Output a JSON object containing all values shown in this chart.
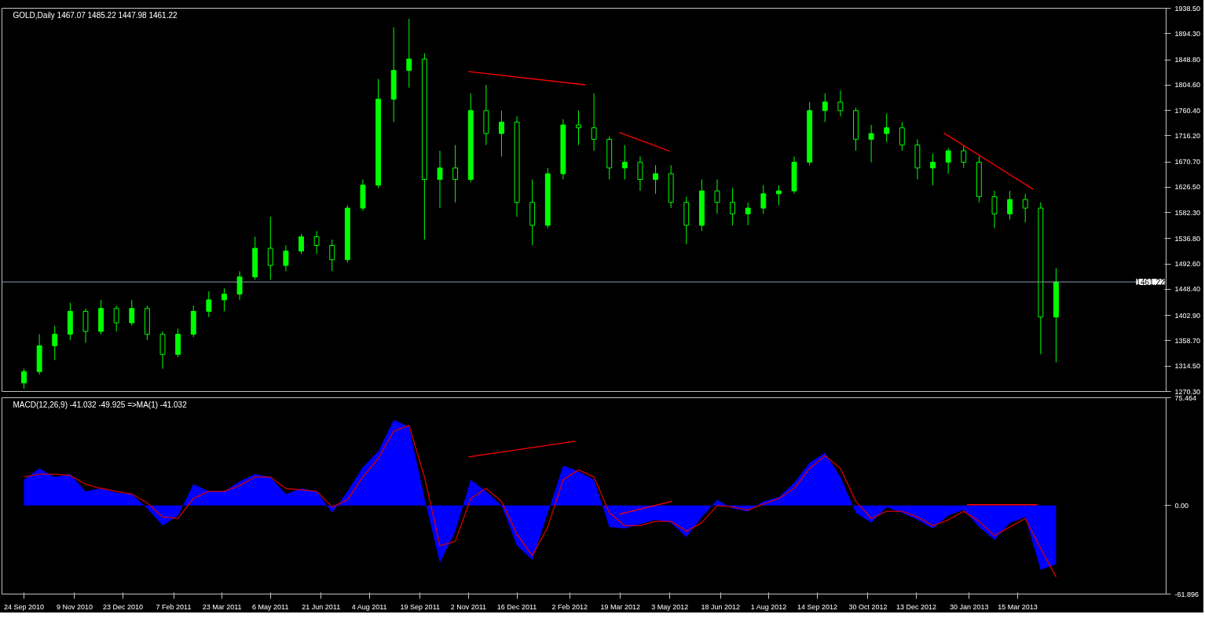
{
  "chart_data": [
    {
      "type": "candlestick",
      "title": "GOLD,Daily  1467.07 1485.22 1447.98 1461.22",
      "color": "#00ff00",
      "tick_labels": "y",
      "x": [
        "2010-09-24",
        "2010-10-08",
        "2010-10-22",
        "2010-11-05",
        "2010-11-19",
        "2010-12-03",
        "2010-12-17",
        "2010-12-31",
        "2011-01-14",
        "2011-01-28",
        "2011-02-11",
        "2011-02-25",
        "2011-03-11",
        "2011-03-25",
        "2011-04-08",
        "2011-04-22",
        "2011-05-06",
        "2011-05-20",
        "2011-06-03",
        "2011-06-17",
        "2011-07-01",
        "2011-07-15",
        "2011-07-29",
        "2011-08-12",
        "2011-08-26",
        "2011-09-09",
        "2011-09-23",
        "2011-10-07",
        "2011-10-21",
        "2011-11-04",
        "2011-11-18",
        "2011-12-02",
        "2011-12-16",
        "2011-12-30",
        "2012-01-13",
        "2012-01-27",
        "2012-02-10",
        "2012-02-24",
        "2012-03-09",
        "2012-03-23",
        "2012-04-06",
        "2012-04-20",
        "2012-05-04",
        "2012-05-18",
        "2012-06-01",
        "2012-06-15",
        "2012-06-29",
        "2012-07-13",
        "2012-07-27",
        "2012-08-10",
        "2012-08-24",
        "2012-09-07",
        "2012-09-21",
        "2012-10-05",
        "2012-10-19",
        "2012-11-02",
        "2012-11-16",
        "2012-11-30",
        "2012-12-14",
        "2012-12-28",
        "2013-01-11",
        "2013-01-25",
        "2013-02-08",
        "2013-02-22",
        "2013-03-08",
        "2013-03-22",
        "2013-04-05",
        "2013-04-19"
      ],
      "ohlc": [
        [
          1285,
          1310,
          1275,
          1305
        ],
        [
          1305,
          1370,
          1300,
          1350
        ],
        [
          1350,
          1385,
          1325,
          1370
        ],
        [
          1370,
          1425,
          1360,
          1410
        ],
        [
          1410,
          1415,
          1355,
          1375
        ],
        [
          1375,
          1430,
          1370,
          1415
        ],
        [
          1415,
          1420,
          1375,
          1390
        ],
        [
          1390,
          1430,
          1385,
          1415
        ],
        [
          1415,
          1420,
          1360,
          1370
        ],
        [
          1370,
          1375,
          1310,
          1335
        ],
        [
          1335,
          1380,
          1330,
          1370
        ],
        [
          1370,
          1420,
          1365,
          1410
        ],
        [
          1410,
          1445,
          1400,
          1430
        ],
        [
          1430,
          1450,
          1410,
          1440
        ],
        [
          1440,
          1480,
          1430,
          1470
        ],
        [
          1470,
          1540,
          1465,
          1520
        ],
        [
          1520,
          1575,
          1465,
          1490
        ],
        [
          1490,
          1525,
          1480,
          1515
        ],
        [
          1515,
          1545,
          1510,
          1540
        ],
        [
          1540,
          1550,
          1510,
          1525
        ],
        [
          1525,
          1535,
          1480,
          1500
        ],
        [
          1500,
          1595,
          1495,
          1590
        ],
        [
          1590,
          1640,
          1585,
          1630
        ],
        [
          1630,
          1815,
          1625,
          1780
        ],
        [
          1780,
          1905,
          1740,
          1830
        ],
        [
          1830,
          1920,
          1800,
          1850
        ],
        [
          1850,
          1860,
          1535,
          1640
        ],
        [
          1640,
          1690,
          1590,
          1660
        ],
        [
          1660,
          1700,
          1600,
          1640
        ],
        [
          1640,
          1790,
          1635,
          1760
        ],
        [
          1760,
          1805,
          1700,
          1720
        ],
        [
          1720,
          1760,
          1680,
          1740
        ],
        [
          1740,
          1750,
          1575,
          1600
        ],
        [
          1600,
          1640,
          1525,
          1560
        ],
        [
          1560,
          1660,
          1555,
          1650
        ],
        [
          1650,
          1745,
          1640,
          1735
        ],
        [
          1735,
          1760,
          1700,
          1730
        ],
        [
          1730,
          1790,
          1690,
          1710
        ],
        [
          1710,
          1715,
          1640,
          1660
        ],
        [
          1660,
          1700,
          1640,
          1670
        ],
        [
          1670,
          1680,
          1620,
          1640
        ],
        [
          1640,
          1665,
          1615,
          1650
        ],
        [
          1650,
          1665,
          1590,
          1600
        ],
        [
          1600,
          1610,
          1527,
          1560
        ],
        [
          1560,
          1640,
          1550,
          1620
        ],
        [
          1620,
          1640,
          1580,
          1600
        ],
        [
          1600,
          1625,
          1560,
          1580
        ],
        [
          1580,
          1600,
          1560,
          1590
        ],
        [
          1590,
          1630,
          1580,
          1615
        ],
        [
          1615,
          1630,
          1595,
          1620
        ],
        [
          1620,
          1680,
          1615,
          1670
        ],
        [
          1670,
          1775,
          1665,
          1760
        ],
        [
          1760,
          1790,
          1740,
          1775
        ],
        [
          1775,
          1795,
          1750,
          1760
        ],
        [
          1760,
          1765,
          1690,
          1710
        ],
        [
          1710,
          1735,
          1670,
          1720
        ],
        [
          1720,
          1755,
          1705,
          1730
        ],
        [
          1730,
          1740,
          1690,
          1700
        ],
        [
          1700,
          1710,
          1640,
          1660
        ],
        [
          1660,
          1685,
          1630,
          1670
        ],
        [
          1670,
          1695,
          1650,
          1690
        ],
        [
          1690,
          1700,
          1660,
          1670
        ],
        [
          1670,
          1680,
          1600,
          1610
        ],
        [
          1610,
          1620,
          1555,
          1580
        ],
        [
          1580,
          1620,
          1570,
          1605
        ],
        [
          1605,
          1615,
          1565,
          1590
        ],
        [
          1590,
          1600,
          1335,
          1400
        ],
        [
          1400,
          1485,
          1321,
          1461.22
        ]
      ],
      "series": [
        {
          "type": "line",
          "color": "#ff0000",
          "x": [
            "2011-11-02",
            "2012-02-16"
          ],
          "values": [
            1828,
            1805
          ]
        },
        {
          "type": "line",
          "color": "#ff0000",
          "x": [
            "2012-03-18",
            "2012-05-03"
          ],
          "values": [
            1722,
            1689
          ]
        },
        {
          "type": "line",
          "color": "#ff0000",
          "x": [
            "2013-01-07",
            "2013-03-29"
          ],
          "values": [
            1721,
            1623
          ]
        }
      ],
      "ref_lines": [
        {
          "axis": "y",
          "value": 1461.22,
          "label": "1461.22",
          "color": "#8a9cac"
        }
      ],
      "xlim": [
        "2010-09-04",
        "2013-07-28"
      ],
      "ylim": [
        1270.3,
        1938.5
      ],
      "yticks": [
        {
          "value": 1270.3,
          "label": "1270.30"
        },
        {
          "value": 1314.5,
          "label": "1314.50"
        },
        {
          "value": 1358.7,
          "label": "1358.70"
        },
        {
          "value": 1402.9,
          "label": "1402.90"
        },
        {
          "value": 1448.4,
          "label": "1448.40"
        },
        {
          "value": 1492.6,
          "label": "1492.60"
        },
        {
          "value": 1536.8,
          "label": "1536.80"
        },
        {
          "value": 1582.3,
          "label": "1582.30"
        },
        {
          "value": 1626.5,
          "label": "1626.50"
        },
        {
          "value": 1670.7,
          "label": "1670.70"
        },
        {
          "value": 1716.2,
          "label": "1716.20"
        },
        {
          "value": 1760.4,
          "label": "1760.40"
        },
        {
          "value": 1804.6,
          "label": "1804.60"
        },
        {
          "value": 1848.8,
          "label": "1848.80"
        },
        {
          "value": 1894.3,
          "label": "1894.30"
        },
        {
          "value": 1938.5,
          "label": "1938.50"
        }
      ]
    },
    {
      "type": "area",
      "title": "MACD(12,26,9) -41.032 -49.925  =>MA(1) -41.032",
      "x": [
        "2010-09-24",
        "2010-10-08",
        "2010-10-22",
        "2010-11-05",
        "2010-11-19",
        "2010-12-03",
        "2010-12-17",
        "2010-12-31",
        "2011-01-14",
        "2011-01-28",
        "2011-02-11",
        "2011-02-25",
        "2011-03-11",
        "2011-03-25",
        "2011-04-08",
        "2011-04-22",
        "2011-05-06",
        "2011-05-20",
        "2011-06-03",
        "2011-06-17",
        "2011-07-01",
        "2011-07-15",
        "2011-07-29",
        "2011-08-12",
        "2011-08-26",
        "2011-09-09",
        "2011-09-23",
        "2011-10-07",
        "2011-10-21",
        "2011-11-04",
        "2011-11-18",
        "2011-12-02",
        "2011-12-16",
        "2011-12-30",
        "2012-01-13",
        "2012-01-27",
        "2012-02-10",
        "2012-02-24",
        "2012-03-09",
        "2012-03-23",
        "2012-04-06",
        "2012-04-20",
        "2012-05-04",
        "2012-05-18",
        "2012-06-01",
        "2012-06-15",
        "2012-06-29",
        "2012-07-13",
        "2012-07-27",
        "2012-08-10",
        "2012-08-24",
        "2012-09-07",
        "2012-09-21",
        "2012-10-05",
        "2012-10-19",
        "2012-11-02",
        "2012-11-16",
        "2012-11-30",
        "2012-12-14",
        "2012-12-28",
        "2013-01-11",
        "2013-01-25",
        "2013-02-08",
        "2013-02-22",
        "2013-03-08",
        "2013-03-22",
        "2013-04-05",
        "2013-04-19"
      ],
      "series": [
        {
          "type": "area",
          "color": "#0000ff",
          "values": [
            18,
            26,
            20,
            22,
            10,
            12,
            9,
            8,
            -2,
            -14,
            -7,
            15,
            10,
            10,
            17,
            22,
            20,
            8,
            12,
            10,
            -5,
            10,
            27,
            38,
            60,
            55,
            5,
            -40,
            -18,
            18,
            10,
            0,
            -28,
            -38,
            -5,
            28,
            24,
            18,
            -15,
            -16,
            -13,
            -10,
            -12,
            -22,
            -8,
            4,
            -2,
            -4,
            3,
            6,
            16,
            30,
            37,
            20,
            -5,
            -12,
            -1,
            -5,
            -10,
            -16,
            -7,
            -3,
            -15,
            -24,
            -12,
            -8,
            -45,
            -41
          ]
        },
        {
          "type": "line",
          "color": "#d00000",
          "values": [
            20,
            22,
            22,
            21,
            15,
            12,
            10,
            8,
            2,
            -8,
            -9,
            5,
            10,
            10,
            14,
            20,
            20,
            12,
            11,
            10,
            -1,
            4,
            20,
            33,
            52,
            56,
            20,
            -28,
            -25,
            5,
            12,
            3,
            -20,
            -35,
            -15,
            18,
            25,
            20,
            -5,
            -14,
            -14,
            -11,
            -11,
            -18,
            -12,
            0,
            -1,
            -3,
            1,
            5,
            12,
            26,
            35,
            26,
            3,
            -9,
            -4,
            -4,
            -8,
            -14,
            -10,
            -4,
            -11,
            -21,
            -15,
            -9,
            -30,
            -50
          ]
        },
        {
          "type": "line",
          "color": "#ff0000",
          "x": [
            "2011-11-02",
            "2012-02-07"
          ],
          "values": [
            34,
            45
          ]
        },
        {
          "type": "line",
          "color": "#ff0000",
          "x": [
            "2012-03-18",
            "2012-05-05"
          ],
          "values": [
            -6,
            3
          ]
        },
        {
          "type": "line",
          "color": "#ff0000",
          "x": [
            "2013-01-28",
            "2013-04-02"
          ],
          "values": [
            0.6,
            0.6
          ]
        }
      ],
      "xlim": [
        "2010-09-04",
        "2013-07-28"
      ],
      "ylim": [
        -61.896,
        75.464
      ],
      "yticks": [
        -61.896,
        {
          "value": 0,
          "label": "0.00"
        },
        75.464
      ],
      "xticks": [
        {
          "value": "2010-09-24",
          "label": "24 Sep 2010"
        },
        {
          "value": "2010-11-09",
          "label": "9 Nov 2010"
        },
        {
          "value": "2010-12-23",
          "label": "23 Dec 2010"
        },
        {
          "value": "2011-02-07",
          "label": "7 Feb 2011"
        },
        {
          "value": "2011-03-23",
          "label": "23 Mar 2011"
        },
        {
          "value": "2011-05-06",
          "label": "6 May 2011"
        },
        {
          "value": "2011-06-21",
          "label": "21 Jun 2011"
        },
        {
          "value": "2011-08-04",
          "label": "4 Aug 2011"
        },
        {
          "value": "2011-09-19",
          "label": "19 Sep 2011"
        },
        {
          "value": "2011-11-02",
          "label": "2 Nov 2011"
        },
        {
          "value": "2011-12-16",
          "label": "16 Dec 2011"
        },
        {
          "value": "2012-02-02",
          "label": "2 Feb 2012"
        },
        {
          "value": "2012-03-19",
          "label": "19 Mar 2012"
        },
        {
          "value": "2012-05-03",
          "label": "3 May 2012"
        },
        {
          "value": "2012-06-18",
          "label": "18 Jun 2012"
        },
        {
          "value": "2012-08-01",
          "label": "1 Aug 2012"
        },
        {
          "value": "2012-09-14",
          "label": "14 Sep 2012"
        },
        {
          "value": "2012-10-30",
          "label": "30 Oct 2012"
        },
        {
          "value": "2012-12-13",
          "label": "13 Dec 2012"
        },
        {
          "value": "2013-01-30",
          "label": "30 Jan 2013"
        },
        {
          "value": "2013-03-15",
          "label": "15 Mar 2013"
        }
      ]
    }
  ]
}
